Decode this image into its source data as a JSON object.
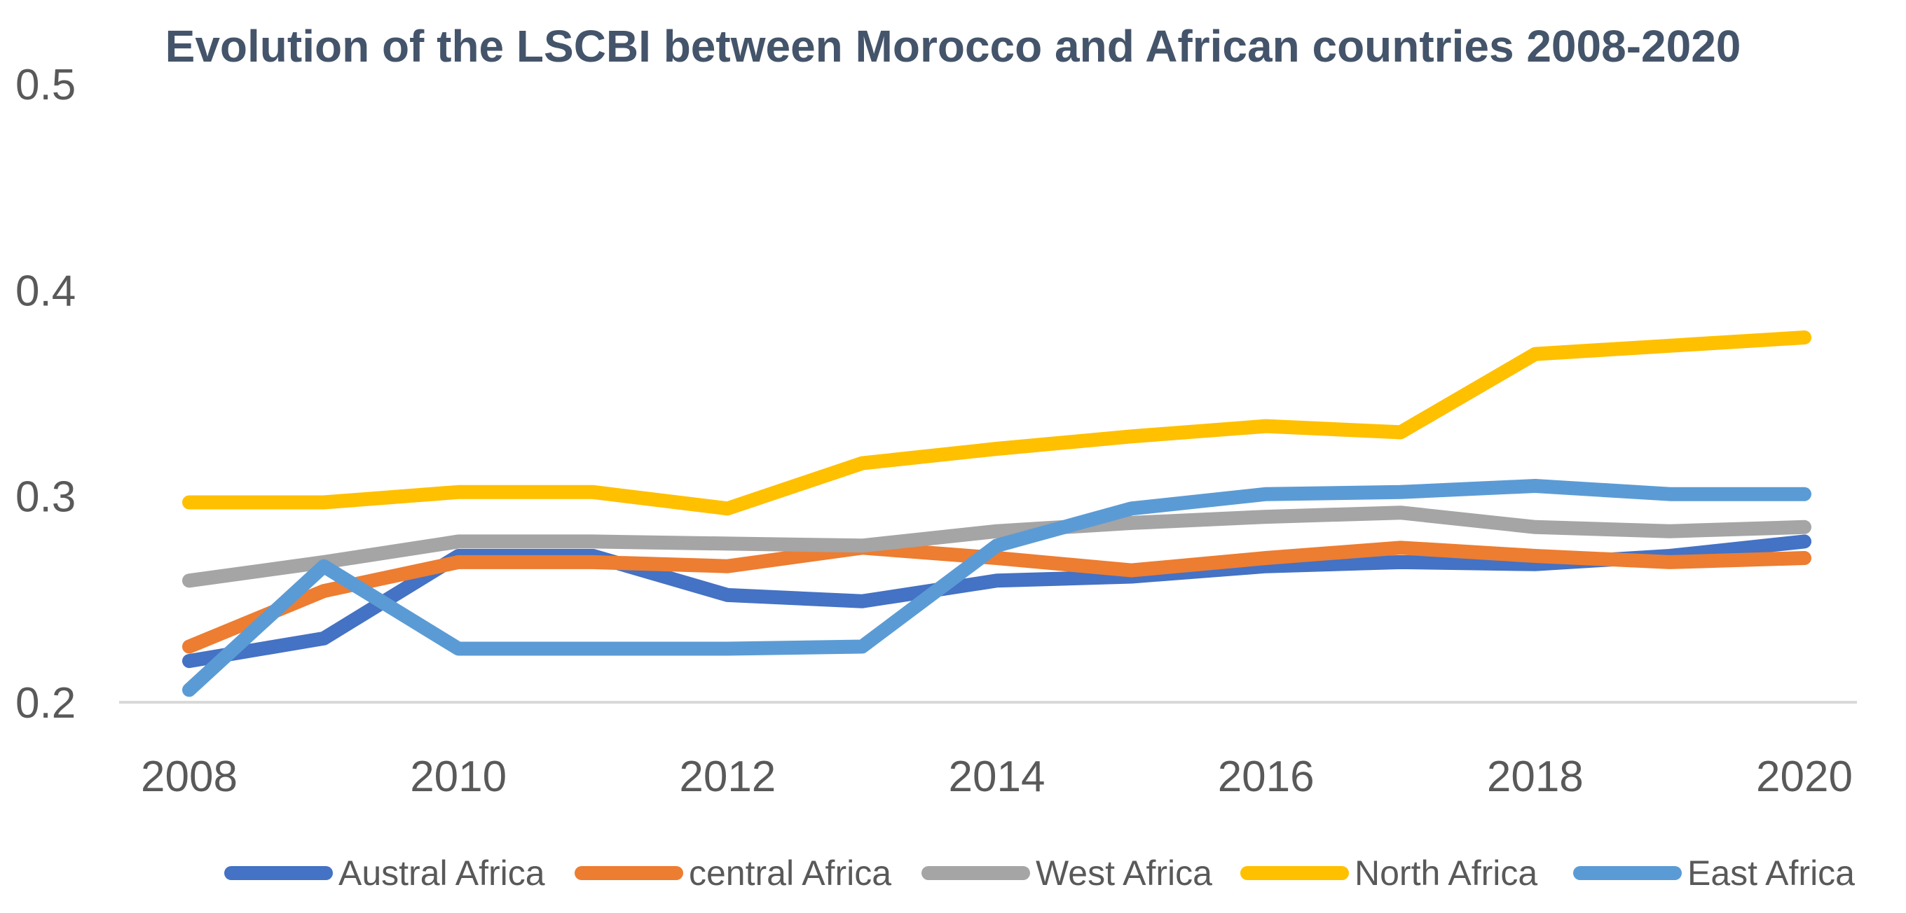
{
  "colors": {
    "background": "#ffffff",
    "title": "#44546A",
    "tick": "#595959",
    "axis": "#D9D9D9",
    "legend_text": "#595959"
  },
  "chart_data": {
    "type": "line",
    "title": "Evolution of the LSCBI between Morocco and African countries 2008-2020",
    "xlabel": "",
    "ylabel": "",
    "x": [
      2008,
      2009,
      2010,
      2011,
      2012,
      2013,
      2014,
      2015,
      2016,
      2017,
      2018,
      2019,
      2020
    ],
    "x_tick_labels": [
      "2008",
      "2010",
      "2012",
      "2014",
      "2016",
      "2018",
      "2020"
    ],
    "y_tick_labels": [
      "0.5",
      "0.4",
      "0.3",
      "0.2"
    ],
    "ylim": [
      0.2,
      0.5
    ],
    "grid": false,
    "legend_position": "bottom",
    "series": [
      {
        "name": "Austral Africa",
        "color": "#4472C4",
        "values": [
          0.22,
          0.231,
          0.271,
          0.271,
          0.252,
          0.249,
          0.259,
          0.261,
          0.266,
          0.268,
          0.267,
          0.271,
          0.278
        ]
      },
      {
        "name": "central Africa",
        "color": "#ED7D31",
        "values": [
          0.227,
          0.254,
          0.268,
          0.268,
          0.266,
          0.275,
          0.27,
          0.264,
          0.27,
          0.275,
          0.271,
          0.268,
          0.27
        ]
      },
      {
        "name": "West Africa",
        "color": "#A5A5A5",
        "values": [
          0.259,
          0.268,
          0.278,
          0.278,
          0.277,
          0.276,
          0.283,
          0.287,
          0.29,
          0.292,
          0.285,
          0.283,
          0.285
        ]
      },
      {
        "name": "North Africa",
        "color": "#FFC000",
        "values": [
          0.297,
          0.297,
          0.302,
          0.302,
          0.294,
          0.316,
          0.323,
          0.329,
          0.334,
          0.331,
          0.369,
          0.373,
          0.377
        ]
      },
      {
        "name": "East Africa",
        "color": "#5B9BD5",
        "values": [
          0.206,
          0.266,
          0.226,
          0.226,
          0.226,
          0.227,
          0.276,
          0.294,
          0.301,
          0.302,
          0.305,
          0.301,
          0.301
        ]
      }
    ]
  }
}
